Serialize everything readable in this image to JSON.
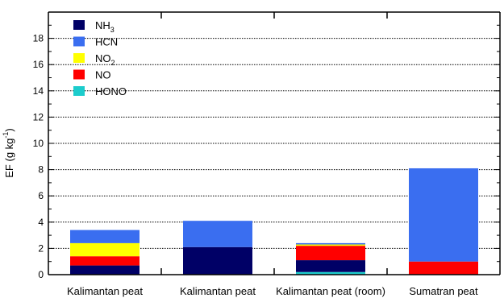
{
  "chart_data": {
    "type": "bar",
    "stacked": true,
    "categories": [
      "Kalimantan peat",
      "Kalimantan peat",
      "Kalimantan peat (room)",
      "Sumatran peat"
    ],
    "series": [
      {
        "name": "HONO",
        "name_sub": "",
        "color": "#1ccccc",
        "values": [
          0.0,
          0.0,
          0.2,
          0.0
        ]
      },
      {
        "name": "NH",
        "name_sub": "3",
        "color": "#000066",
        "values": [
          0.7,
          2.1,
          0.9,
          0.0
        ]
      },
      {
        "name": "NO",
        "name_sub": "",
        "color": "#ff0000",
        "values": [
          0.7,
          0.0,
          1.1,
          1.0
        ]
      },
      {
        "name": "NO",
        "name_sub": "2",
        "color": "#ffff00",
        "values": [
          1.0,
          0.0,
          0.1,
          0.0
        ]
      },
      {
        "name": "HCN",
        "name_sub": "",
        "color": "#3a6ef0",
        "values": [
          1.0,
          2.0,
          0.1,
          7.1
        ]
      }
    ],
    "legend_order": [
      1,
      4,
      3,
      2,
      0
    ],
    "stack_order": [
      0,
      1,
      2,
      3,
      4
    ],
    "ylabel": "EF (g kg",
    "ylabel_sup": "-1",
    "ylabel_close": ")",
    "ylim": [
      0,
      20
    ],
    "yticks": [
      0,
      2,
      4,
      6,
      8,
      10,
      12,
      14,
      16,
      18
    ],
    "grid": true,
    "legend_position": "top-left"
  }
}
